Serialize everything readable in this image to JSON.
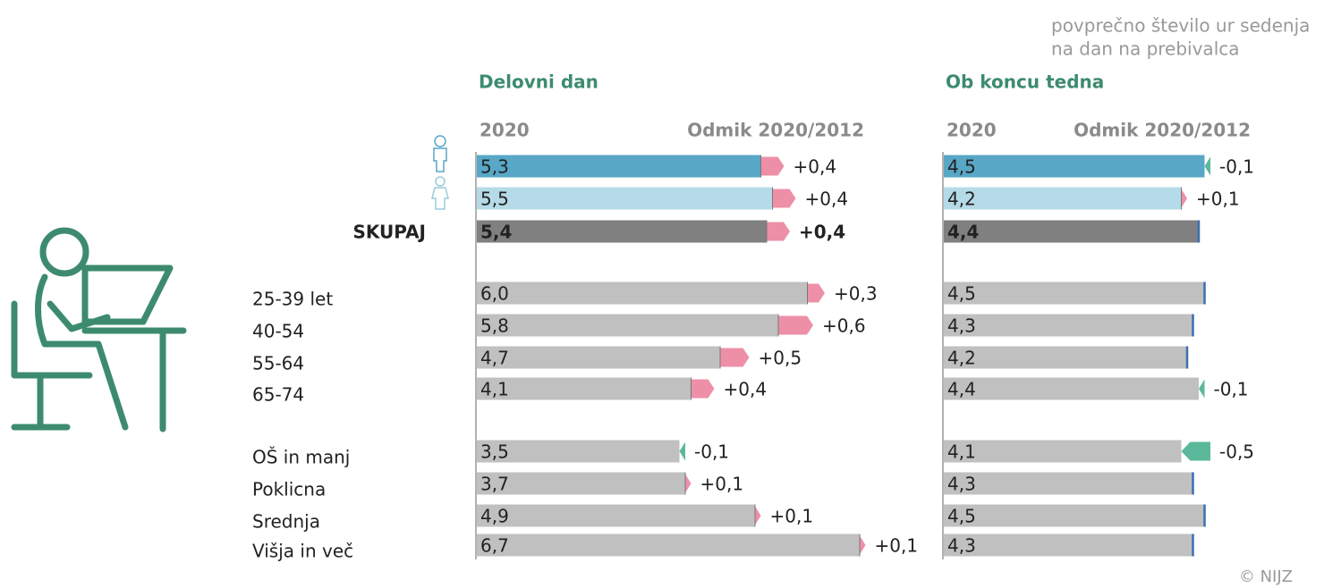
{
  "chart_data": {
    "type": "bar",
    "subtitle": [
      "povprečno število ur sedenja",
      "na dan na prebivalca"
    ],
    "categories": [
      null,
      null,
      "SKUPAJ",
      "25-39 let",
      "40-54",
      "55-64",
      "65-74",
      "OŠ in manj",
      "Poklicna",
      "Srednja",
      "Višja in več"
    ],
    "colors": [
      "#58a7c6",
      "#b6dbe8",
      "#808080",
      "#c0c0c0",
      "#c0c0c0",
      "#c0c0c0",
      "#c0c0c0",
      "#c0c0c0",
      "#c0c0c0",
      "#c0c0c0",
      "#c0c0c0"
    ],
    "increase_color": "#ee8fa8",
    "decrease_color": "#5bb89a",
    "zero_color": "#3a6fb0",
    "xlim": [
      0,
      7
    ],
    "panels": [
      {
        "title": "Delovni dan",
        "header_value": "2020",
        "header_change": "Odmik 2020/2012",
        "values": [
          5.3,
          5.5,
          5.4,
          6.0,
          5.8,
          4.7,
          4.1,
          3.5,
          3.7,
          4.9,
          6.7
        ],
        "value_labels": [
          "5,3",
          "5,5",
          "5,4",
          "6,0",
          "5,8",
          "4,7",
          "4,1",
          "3,5",
          "3,7",
          "4,9",
          "6,7"
        ],
        "change": [
          0.4,
          0.4,
          0.4,
          0.3,
          0.6,
          0.5,
          0.4,
          -0.1,
          0.1,
          0.1,
          0.1
        ],
        "change_labels": [
          "+0,4",
          "+0,4",
          "+0,4",
          "+0,3",
          "+0,6",
          "+0,5",
          "+0,4",
          "-0,1",
          "+0,1",
          "+0,1",
          "+0,1"
        ]
      },
      {
        "title": "Ob koncu tedna",
        "header_value": "2020",
        "header_change": "Odmik 2020/2012",
        "values": [
          4.5,
          4.2,
          4.4,
          4.5,
          4.3,
          4.2,
          4.4,
          4.1,
          4.3,
          4.5,
          4.3
        ],
        "value_labels": [
          "4,5",
          "4,2",
          "4,4",
          "4,5",
          "4,3",
          "4,2",
          "4,4",
          "4,1",
          "4,3",
          "4,5",
          "4,3"
        ],
        "change": [
          -0.1,
          0.1,
          0,
          0,
          0,
          0,
          -0.1,
          -0.5,
          0,
          0,
          0
        ],
        "change_labels": [
          "-0,1",
          "+0,1",
          null,
          null,
          null,
          null,
          "-0,1",
          "-0,5",
          null,
          null,
          null
        ]
      }
    ],
    "source": "© NIJZ"
  }
}
